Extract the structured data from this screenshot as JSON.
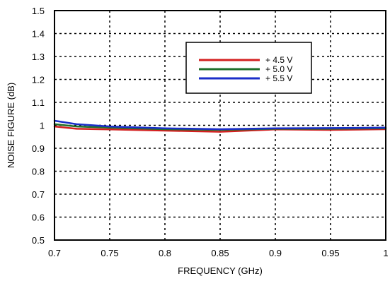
{
  "chart_data": {
    "type": "line",
    "title": "",
    "xlabel": "FREQUENCY (GHz)",
    "ylabel": "NOISE FIGURE (dB)",
    "xlim": [
      0.7,
      1.0
    ],
    "ylim": [
      0.5,
      1.5
    ],
    "x_ticks": [
      0.7,
      0.75,
      0.8,
      0.85,
      0.9,
      0.95,
      1.0
    ],
    "x_tick_labels": [
      "0.7",
      "0.75",
      "0.8",
      "0.85",
      "0.9",
      "0.95",
      "1"
    ],
    "y_ticks": [
      0.5,
      0.6,
      0.7,
      0.8,
      0.9,
      1.0,
      1.1,
      1.2,
      1.3,
      1.4,
      1.5
    ],
    "y_tick_labels": [
      "0.5",
      "0.6",
      "0.7",
      "0.8",
      "0.9",
      "1",
      "1.1",
      "1.2",
      "1.3",
      "1.4",
      "1.5"
    ],
    "grid": true,
    "legend_position": "upper-center",
    "series": [
      {
        "name": "+ 4.5 V",
        "color": "#d42020",
        "x": [
          0.7,
          0.72,
          0.75,
          0.8,
          0.85,
          0.9,
          0.95,
          1.0
        ],
        "y": [
          0.995,
          0.985,
          0.982,
          0.977,
          0.972,
          0.982,
          0.98,
          0.983
        ]
      },
      {
        "name": "+ 5.0 V",
        "color": "#1f6e2a",
        "x": [
          0.7,
          0.72,
          0.75,
          0.8,
          0.85,
          0.9,
          0.95,
          1.0
        ],
        "y": [
          1.005,
          0.995,
          0.99,
          0.983,
          0.98,
          0.985,
          0.985,
          0.987
        ]
      },
      {
        "name": "+ 5.5 V",
        "color": "#1a2ec8",
        "x": [
          0.7,
          0.72,
          0.75,
          0.8,
          0.85,
          0.9,
          0.95,
          1.0
        ],
        "y": [
          1.02,
          1.005,
          0.995,
          0.987,
          0.983,
          0.987,
          0.988,
          0.99
        ]
      }
    ]
  }
}
